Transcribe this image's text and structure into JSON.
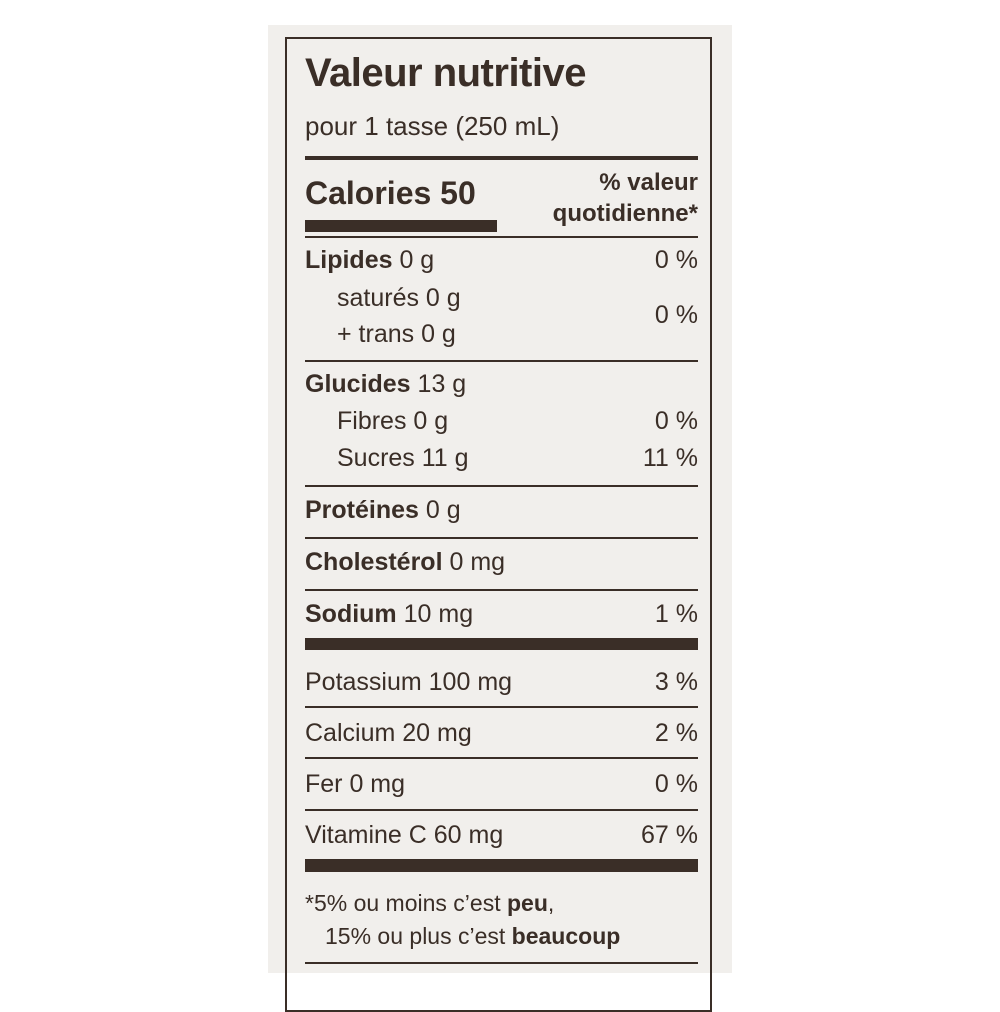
{
  "label": {
    "title": "Valeur nutritive",
    "serving": "pour 1 tasse (250 mL)",
    "calories_label": "Calories",
    "calories_value": "50",
    "dv_header_line1": "% valeur",
    "dv_header_line2": "quotidienne*",
    "lipides": {
      "name": "Lipides",
      "amount": " 0 g",
      "pct": "0 %"
    },
    "satures": {
      "name": "saturés 0 g"
    },
    "trans": {
      "name": "+ trans 0 g",
      "pct": "0 %"
    },
    "glucides": {
      "name": "Glucides",
      "amount": " 13 g"
    },
    "fibres": {
      "name": "Fibres 0 g",
      "pct": "0 %"
    },
    "sucres": {
      "name": "Sucres 11 g",
      "pct": "11 %"
    },
    "proteines": {
      "name": "Protéines",
      "amount": " 0 g"
    },
    "cholesterol": {
      "name": "Cholestérol",
      "amount": " 0 mg"
    },
    "sodium": {
      "name": "Sodium",
      "amount": " 10 mg",
      "pct": "1 %"
    },
    "potassium": {
      "name": "Potassium 100 mg",
      "pct": "3 %"
    },
    "calcium": {
      "name": "Calcium 20 mg",
      "pct": "2 %"
    },
    "fer": {
      "name": "Fer 0 mg",
      "pct": "0 %"
    },
    "vitamine_c": {
      "name": "Vitamine C 60 mg",
      "pct": "67 %"
    },
    "footnote": {
      "line1_a": "*5% ou moins c’est ",
      "line1_b": "peu",
      "line1_c": ",",
      "line2_a": "15% ou plus c’est ",
      "line2_b": "beaucoup"
    }
  },
  "colors": {
    "ink": "#3a2e27",
    "package": "#f1efec",
    "background": "#ffffff"
  }
}
